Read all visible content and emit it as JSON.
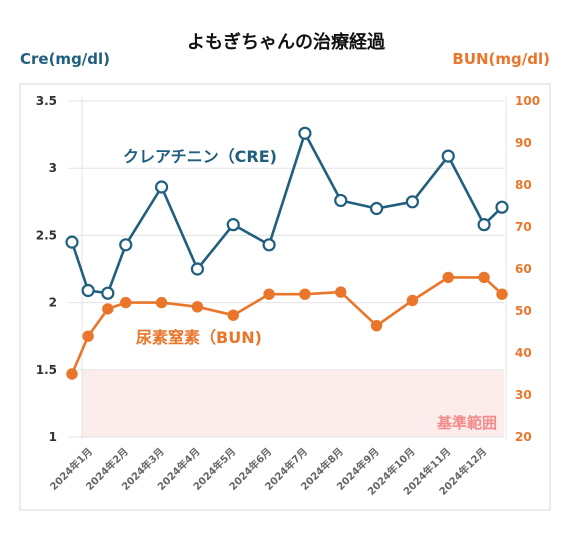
{
  "chart_data": {
    "type": "line",
    "title": "よもぎちゃんの治療経過",
    "ylabel_left": "Cre(mg/dl)",
    "ylabel_right": "BUN(mg/dl)",
    "categories": [
      "2024年1月",
      "2024年2月",
      "2024年3月",
      "2024年4月",
      "2024年5月",
      "2024年6月",
      "2024年7月",
      "2024年8月",
      "2024年9月",
      "2024年10月",
      "2024年11月",
      "2024年12月"
    ],
    "y_left": {
      "min": 1,
      "max": 3.5,
      "ticks": [
        "1",
        "1.5",
        "2",
        "2.5",
        "3",
        "3.5"
      ]
    },
    "y_right": {
      "min": 20,
      "max": 100,
      "ticks": [
        "20",
        "30",
        "40",
        "50",
        "60",
        "70",
        "80",
        "90",
        "100"
      ]
    },
    "series": [
      {
        "name": "クレアチニン（CRE)",
        "axis": "left",
        "color": "#215f7f",
        "marker": "hollow",
        "x": [
          0,
          0.45,
          1,
          1.5,
          2.5,
          3.5,
          4.5,
          5.5,
          6.5,
          7.5,
          8.5,
          9.5,
          10.5,
          11.5,
          12
        ],
        "values": [
          2.45,
          2.09,
          2.07,
          2.43,
          2.86,
          2.25,
          2.58,
          2.43,
          3.26,
          2.76,
          2.7,
          2.75,
          3.09,
          2.58,
          2.71
        ]
      },
      {
        "name": "尿素窒素（BUN)",
        "axis": "right",
        "color": "#e9762b",
        "marker": "filled",
        "x": [
          0,
          0.45,
          1,
          1.5,
          2.5,
          3.5,
          4.5,
          5.5,
          6.5,
          7.5,
          8.5,
          9.5,
          10.5,
          11.5,
          12
        ],
        "values": [
          35,
          44,
          50.5,
          52,
          52,
          51,
          49,
          54,
          54,
          54.5,
          46.5,
          52.5,
          58,
          58,
          54
        ]
      }
    ],
    "band": {
      "label": "基準範囲",
      "axis": "left",
      "from": 1,
      "to": 1.5,
      "color": "#fdecec",
      "label_color": "#f28c8c"
    },
    "grid": true
  }
}
